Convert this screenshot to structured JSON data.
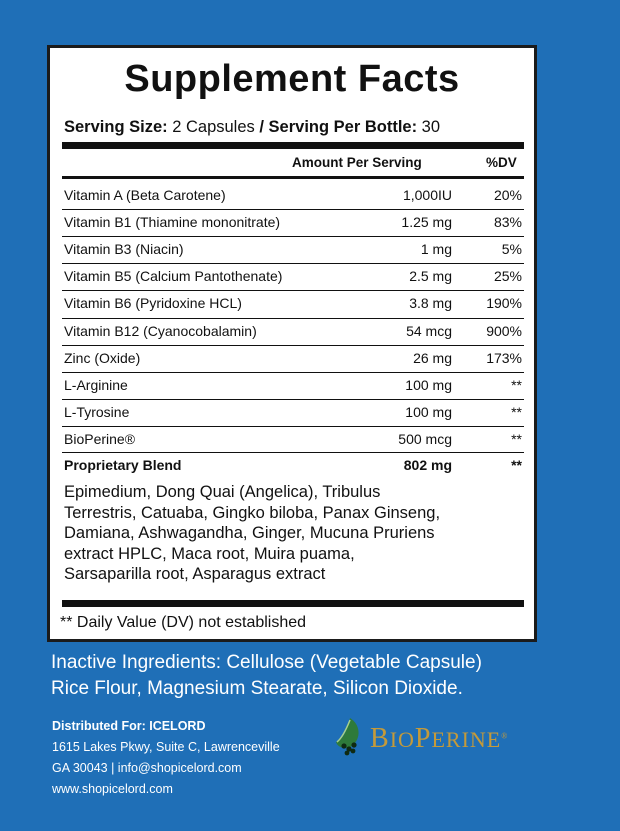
{
  "title": "Supplement Facts",
  "serving": {
    "size_label": "Serving Size:",
    "size_value": "2 Capsules",
    "per_label": "/ Serving Per Bottle:",
    "per_value": "30"
  },
  "header": {
    "amount": "Amount Per Serving",
    "dv": "%DV"
  },
  "rows": [
    {
      "name": "Vitamin A (Beta Carotene)",
      "amount": "1,000IU",
      "dv": "20%"
    },
    {
      "name": "Vitamin B1 (Thiamine mononitrate)",
      "amount": "1.25 mg",
      "dv": "83%"
    },
    {
      "name": "Vitamin B3 (Niacin)",
      "amount": "1 mg",
      "dv": "5%"
    },
    {
      "name": "Vitamin B5 (Calcium Pantothenate)",
      "amount": "2.5 mg",
      "dv": "25%"
    },
    {
      "name": "Vitamin B6 (Pyridoxine HCL)",
      "amount": "3.8 mg",
      "dv": "190%"
    },
    {
      "name": "Vitamin B12 (Cyanocobalamin)",
      "amount": "54 mcg",
      "dv": "900%"
    },
    {
      "name": "Zinc (Oxide)",
      "amount": "26 mg",
      "dv": "173%"
    },
    {
      "name": "L-Arginine",
      "amount": "100 mg",
      "dv": "**"
    },
    {
      "name": "L-Tyrosine",
      "amount": "100 mg",
      "dv": "**"
    },
    {
      "name": "BioPerine®",
      "amount": "500 mcg",
      "dv": "**"
    }
  ],
  "blend": {
    "name": "Proprietary Blend",
    "amount": "802 mg",
    "dv": "**",
    "ingredients_lines": [
      "Epimedium, Dong Quai  (Angelica), Tribulus",
      "Terrestris, Catuaba, Gingko biloba, Panax Ginseng,",
      "Damiana, Ashwagandha, Ginger, Mucuna Pruriens",
      "extract HPLC, Maca root, Muira puama,",
      "Sarsaparilla root, Asparagus extract"
    ]
  },
  "footnote": "** Daily Value (DV) not established",
  "inactive_lines": [
    "Inactive Ingredients: Cellulose (Vegetable Capsule)",
    "Rice Flour, Magnesium Stearate, Silicon Dioxide."
  ],
  "distributor": {
    "label": "Distributed For: ICELORD",
    "address1": "1615 Lakes Pkwy, Suite C, Lawrenceville",
    "address2": "GA 30043 | info@shopicelord.com",
    "website": "www.shopicelord.com"
  },
  "logo": {
    "b": "B",
    "io": "IO",
    "p": "P",
    "erine": "ERINE",
    "reg": "®",
    "icon": "pepper-vine-icon",
    "gold": "#c49a3a",
    "green": "#2e7a3a"
  },
  "colors": {
    "background": "#1f6fb7",
    "panel": "#ffffff",
    "text": "#111111"
  }
}
